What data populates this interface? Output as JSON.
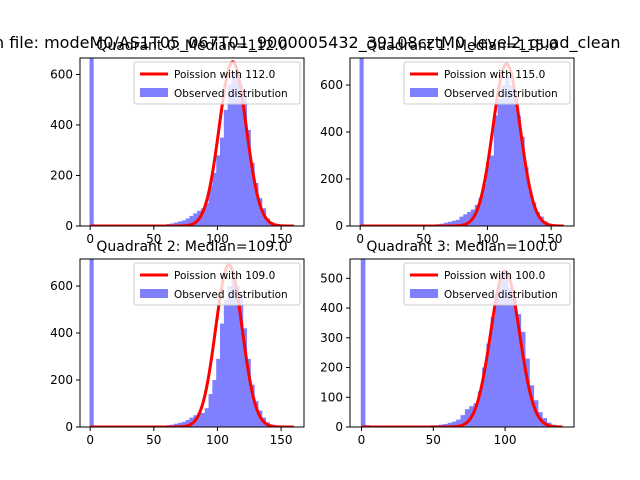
{
  "suptitle": "n file: modeM0/AS1T05_067T01_9000005432_39108cztM0_level2_quad_clean",
  "colors": {
    "observed_fill": "#8080ff",
    "poisson_line": "#ff0000",
    "axis": "#000000",
    "background": "#ffffff"
  },
  "chart_data": [
    {
      "type": "bar",
      "title": "Quadrant 0: Median=112.0",
      "xlim": [
        -8,
        168
      ],
      "ylim": [
        0,
        665
      ],
      "xticks": [
        0,
        50,
        100,
        150
      ],
      "yticks": [
        0,
        200,
        400,
        600
      ],
      "grid": false,
      "legend_position": "top-right",
      "legend": [
        "Poission with 112.0",
        "Observed distribution"
      ],
      "poisson_mean": 112.0,
      "poisson_peak": 650,
      "series": [
        {
          "name": "Observed distribution",
          "type": "histogram",
          "bins": [
            [
              -0.5,
              3,
              665
            ],
            [
              0,
              3,
              8
            ],
            [
              3,
              3,
              6
            ],
            [
              6,
              3,
              5
            ],
            [
              9,
              3,
              5
            ],
            [
              12,
              3,
              5
            ],
            [
              15,
              3,
              5
            ],
            [
              18,
              3,
              5
            ],
            [
              21,
              3,
              5
            ],
            [
              24,
              3,
              5
            ],
            [
              27,
              3,
              5
            ],
            [
              30,
              3,
              5
            ],
            [
              33,
              3,
              5
            ],
            [
              36,
              3,
              5
            ],
            [
              39,
              3,
              5
            ],
            [
              42,
              3,
              5
            ],
            [
              45,
              3,
              5
            ],
            [
              48,
              3,
              5
            ],
            [
              51,
              3,
              6
            ],
            [
              54,
              3,
              6
            ],
            [
              57,
              3,
              6
            ],
            [
              60,
              3,
              8
            ],
            [
              63,
              3,
              10
            ],
            [
              66,
              3,
              14
            ],
            [
              69,
              3,
              18
            ],
            [
              72,
              3,
              22
            ],
            [
              75,
              3,
              30
            ],
            [
              78,
              3,
              40
            ],
            [
              81,
              3,
              50
            ],
            [
              84,
              3,
              60
            ],
            [
              87,
              3,
              70
            ],
            [
              90,
              3,
              90
            ],
            [
              93,
              3,
              160
            ],
            [
              96,
              3,
              210
            ],
            [
              99,
              3,
              280
            ],
            [
              102,
              3,
              350
            ],
            [
              105,
              3,
              460
            ],
            [
              108,
              3,
              560
            ],
            [
              111,
              3,
              610
            ],
            [
              114,
              3,
              600
            ],
            [
              117,
              3,
              560
            ],
            [
              120,
              3,
              530
            ],
            [
              123,
              3,
              380
            ],
            [
              126,
              3,
              250
            ],
            [
              129,
              3,
              170
            ],
            [
              132,
              3,
              110
            ],
            [
              135,
              3,
              70
            ],
            [
              138,
              3,
              30
            ],
            [
              141,
              3,
              15
            ],
            [
              144,
              3,
              8
            ],
            [
              147,
              3,
              4
            ],
            [
              150,
              3,
              2
            ]
          ]
        },
        {
          "name": "Poission with 112.0",
          "type": "line"
        }
      ]
    },
    {
      "type": "bar",
      "title": "Quadrant 1: Median=115.0",
      "xlim": [
        -8,
        168
      ],
      "ylim": [
        0,
        715
      ],
      "xticks": [
        0,
        50,
        100,
        150
      ],
      "yticks": [
        0,
        200,
        400,
        600
      ],
      "grid": false,
      "legend_position": "top-right",
      "legend": [
        "Poission with 115.0",
        "Observed distribution"
      ],
      "poisson_mean": 115.0,
      "poisson_peak": 690,
      "series": [
        {
          "name": "Observed distribution",
          "type": "histogram",
          "bins": [
            [
              -0.5,
              3,
              715
            ],
            [
              0,
              3,
              8
            ],
            [
              3,
              3,
              6
            ],
            [
              6,
              3,
              5
            ],
            [
              9,
              3,
              5
            ],
            [
              12,
              3,
              5
            ],
            [
              15,
              3,
              5
            ],
            [
              18,
              3,
              5
            ],
            [
              21,
              3,
              5
            ],
            [
              24,
              3,
              5
            ],
            [
              27,
              3,
              5
            ],
            [
              30,
              3,
              5
            ],
            [
              33,
              3,
              5
            ],
            [
              36,
              3,
              5
            ],
            [
              39,
              3,
              5
            ],
            [
              42,
              3,
              5
            ],
            [
              45,
              3,
              5
            ],
            [
              48,
              3,
              5
            ],
            [
              51,
              3,
              6
            ],
            [
              54,
              3,
              6
            ],
            [
              57,
              3,
              6
            ],
            [
              60,
              3,
              8
            ],
            [
              63,
              3,
              10
            ],
            [
              66,
              3,
              14
            ],
            [
              69,
              3,
              18
            ],
            [
              72,
              3,
              22
            ],
            [
              75,
              3,
              26
            ],
            [
              78,
              3,
              40
            ],
            [
              81,
              3,
              50
            ],
            [
              84,
              3,
              60
            ],
            [
              87,
              3,
              70
            ],
            [
              90,
              3,
              90
            ],
            [
              93,
              3,
              120
            ],
            [
              96,
              3,
              180
            ],
            [
              99,
              3,
              270
            ],
            [
              102,
              3,
              300
            ],
            [
              105,
              3,
              470
            ],
            [
              108,
              3,
              540
            ],
            [
              111,
              3,
              600
            ],
            [
              114,
              3,
              640
            ],
            [
              117,
              3,
              600
            ],
            [
              120,
              3,
              560
            ],
            [
              123,
              3,
              470
            ],
            [
              126,
              3,
              380
            ],
            [
              129,
              3,
              250
            ],
            [
              132,
              3,
              150
            ],
            [
              135,
              3,
              100
            ],
            [
              138,
              3,
              60
            ],
            [
              141,
              3,
              40
            ],
            [
              144,
              3,
              20
            ],
            [
              147,
              3,
              10
            ],
            [
              150,
              3,
              4
            ]
          ]
        },
        {
          "name": "Poission with 115.0",
          "type": "line"
        }
      ]
    },
    {
      "type": "bar",
      "title": "Quadrant 2: Median=109.0",
      "xlim": [
        -8,
        168
      ],
      "ylim": [
        0,
        715
      ],
      "xticks": [
        0,
        50,
        100,
        150
      ],
      "yticks": [
        0,
        200,
        400,
        600
      ],
      "grid": false,
      "legend_position": "top-right",
      "legend": [
        "Poission with 109.0",
        "Observed distribution"
      ],
      "poisson_mean": 109.0,
      "poisson_peak": 690,
      "series": [
        {
          "name": "Observed distribution",
          "type": "histogram",
          "bins": [
            [
              -0.5,
              3,
              715
            ],
            [
              0,
              3,
              8
            ],
            [
              3,
              3,
              6
            ],
            [
              6,
              3,
              5
            ],
            [
              9,
              3,
              5
            ],
            [
              12,
              3,
              5
            ],
            [
              15,
              3,
              5
            ],
            [
              18,
              3,
              5
            ],
            [
              21,
              3,
              5
            ],
            [
              24,
              3,
              5
            ],
            [
              27,
              3,
              5
            ],
            [
              30,
              3,
              5
            ],
            [
              33,
              3,
              5
            ],
            [
              36,
              3,
              5
            ],
            [
              39,
              3,
              5
            ],
            [
              42,
              3,
              5
            ],
            [
              45,
              3,
              5
            ],
            [
              48,
              3,
              5
            ],
            [
              51,
              3,
              6
            ],
            [
              54,
              3,
              6
            ],
            [
              57,
              3,
              6
            ],
            [
              60,
              3,
              8
            ],
            [
              63,
              3,
              10
            ],
            [
              66,
              3,
              14
            ],
            [
              69,
              3,
              18
            ],
            [
              72,
              3,
              22
            ],
            [
              75,
              3,
              30
            ],
            [
              78,
              3,
              40
            ],
            [
              81,
              3,
              50
            ],
            [
              84,
              3,
              60
            ],
            [
              87,
              3,
              60
            ],
            [
              90,
              3,
              80
            ],
            [
              93,
              3,
              140
            ],
            [
              96,
              3,
              200
            ],
            [
              99,
              3,
              290
            ],
            [
              102,
              3,
              440
            ],
            [
              105,
              3,
              540
            ],
            [
              108,
              3,
              600
            ],
            [
              111,
              3,
              640
            ],
            [
              114,
              3,
              600
            ],
            [
              117,
              3,
              560
            ],
            [
              120,
              3,
              420
            ],
            [
              123,
              3,
              290
            ],
            [
              126,
              3,
              180
            ],
            [
              129,
              3,
              110
            ],
            [
              132,
              3,
              70
            ],
            [
              135,
              3,
              40
            ],
            [
              138,
              3,
              20
            ],
            [
              141,
              3,
              10
            ],
            [
              144,
              3,
              4
            ],
            [
              147,
              3,
              2
            ],
            [
              150,
              3,
              1
            ]
          ]
        },
        {
          "name": "Poission with 109.0",
          "type": "line"
        }
      ]
    },
    {
      "type": "bar",
      "title": "Quadrant 3: Median=100.0",
      "xlim": [
        -8,
        148
      ],
      "ylim": [
        0,
        565
      ],
      "xticks": [
        0,
        50,
        100
      ],
      "yticks": [
        0,
        100,
        200,
        300,
        400,
        500
      ],
      "grid": false,
      "legend_position": "top-right",
      "legend": [
        "Poission with 100.0",
        "Observed distribution"
      ],
      "poisson_mean": 100.0,
      "poisson_peak": 525,
      "series": [
        {
          "name": "Observed distribution",
          "type": "histogram",
          "bins": [
            [
              -0.5,
              3,
              565
            ],
            [
              0,
              3,
              8
            ],
            [
              3,
              3,
              6
            ],
            [
              6,
              3,
              5
            ],
            [
              9,
              3,
              5
            ],
            [
              12,
              3,
              5
            ],
            [
              15,
              3,
              5
            ],
            [
              18,
              3,
              5
            ],
            [
              21,
              3,
              5
            ],
            [
              24,
              3,
              5
            ],
            [
              27,
              3,
              5
            ],
            [
              30,
              3,
              5
            ],
            [
              33,
              3,
              5
            ],
            [
              36,
              3,
              5
            ],
            [
              39,
              3,
              5
            ],
            [
              42,
              3,
              5
            ],
            [
              45,
              3,
              5
            ],
            [
              48,
              3,
              6
            ],
            [
              51,
              3,
              6
            ],
            [
              54,
              3,
              8
            ],
            [
              57,
              3,
              10
            ],
            [
              60,
              3,
              14
            ],
            [
              63,
              3,
              18
            ],
            [
              66,
              3,
              25
            ],
            [
              69,
              3,
              40
            ],
            [
              72,
              3,
              60
            ],
            [
              75,
              3,
              70
            ],
            [
              78,
              3,
              80
            ],
            [
              81,
              3,
              120
            ],
            [
              84,
              3,
              200
            ],
            [
              87,
              3,
              280
            ],
            [
              90,
              3,
              370
            ],
            [
              93,
              3,
              450
            ],
            [
              96,
              3,
              510
            ],
            [
              99,
              3,
              520
            ],
            [
              102,
              3,
              470
            ],
            [
              105,
              3,
              430
            ],
            [
              108,
              3,
              380
            ],
            [
              111,
              3,
              320
            ],
            [
              114,
              3,
              230
            ],
            [
              117,
              3,
              140
            ],
            [
              120,
              3,
              90
            ],
            [
              123,
              3,
              50
            ],
            [
              126,
              3,
              30
            ],
            [
              129,
              3,
              15
            ],
            [
              132,
              3,
              8
            ],
            [
              135,
              3,
              4
            ]
          ]
        },
        {
          "name": "Poission with 100.0",
          "type": "line"
        }
      ]
    }
  ]
}
